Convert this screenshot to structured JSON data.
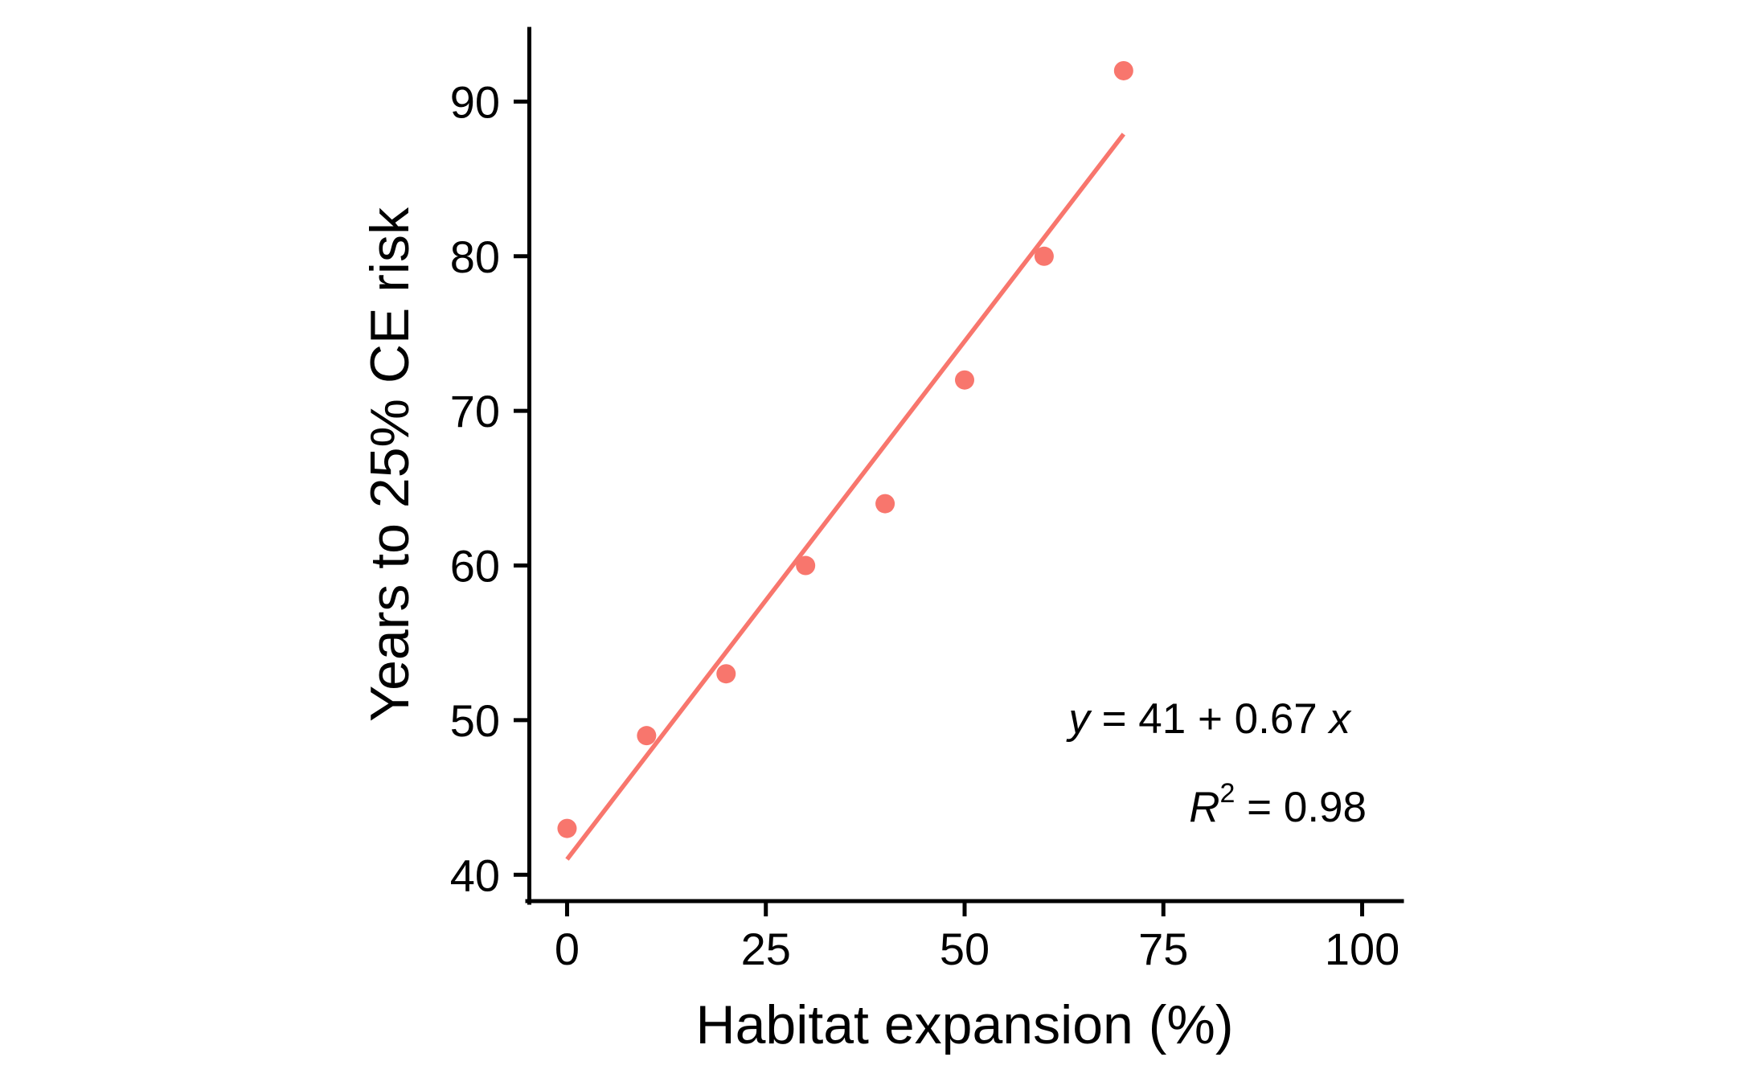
{
  "chart_data": {
    "type": "scatter",
    "xlabel": "Habitat expansion (%)",
    "ylabel": "Years to 25% CE risk",
    "xlim": [
      -5,
      105
    ],
    "ylim": [
      38.3,
      94.7
    ],
    "x_ticks": [
      0,
      25,
      50,
      75,
      100
    ],
    "y_ticks": [
      40,
      50,
      60,
      70,
      80,
      90
    ],
    "grid": false,
    "points": [
      {
        "x": 0,
        "y": 43
      },
      {
        "x": 10,
        "y": 49
      },
      {
        "x": 20,
        "y": 53
      },
      {
        "x": 30,
        "y": 60
      },
      {
        "x": 40,
        "y": 64
      },
      {
        "x": 50,
        "y": 72
      },
      {
        "x": 60,
        "y": 80
      },
      {
        "x": 70,
        "y": 92
      }
    ],
    "fit_line": {
      "intercept": 41,
      "slope": 0.67,
      "x_range": [
        0,
        70
      ]
    },
    "annotations": {
      "equation": {
        "y_var": "y",
        "rhs": " = 41 + 0.67 ",
        "x_var": "x"
      },
      "r_squared": {
        "symbol": "R",
        "exponent": "2",
        "rhs": " = 0.98"
      }
    },
    "colors": {
      "points": "#f8766d",
      "fit_line": "#f8766d",
      "axis": "#000000"
    }
  }
}
